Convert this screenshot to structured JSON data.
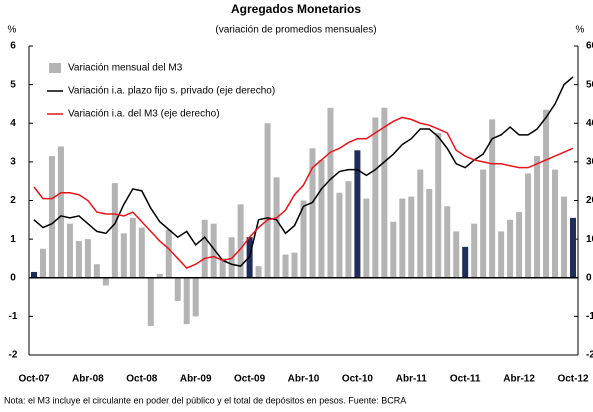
{
  "chart_data": {
    "type": "bar_line",
    "title": "Agregados Monetarios",
    "subtitle": "(variación de promedios mensuales)",
    "y_label": "%",
    "y2_label": "%",
    "note": "Nota: el M3 incluye el circulante en poder del público y el total de depósitos en pesos. Fuente: BCRA",
    "categories": [
      "Oct-07",
      null,
      null,
      null,
      null,
      null,
      "Abr-08",
      null,
      null,
      null,
      null,
      null,
      "Oct-08",
      null,
      null,
      null,
      null,
      null,
      "Abr-09",
      null,
      null,
      null,
      null,
      null,
      "Oct-09",
      null,
      null,
      null,
      null,
      null,
      "Abr-10",
      null,
      null,
      null,
      null,
      null,
      "Oct-10",
      null,
      null,
      null,
      null,
      null,
      "Abr-11",
      null,
      null,
      null,
      null,
      null,
      "Oct-11",
      null,
      null,
      null,
      null,
      null,
      "Abr-12",
      null,
      null,
      null,
      null,
      null,
      "Oct-12"
    ],
    "ylim": [
      -2,
      6
    ],
    "yticks": [
      -2,
      -1,
      0,
      1,
      2,
      3,
      4,
      5,
      6
    ],
    "y2lim": [
      -20,
      60
    ],
    "y2ticks": [
      -20,
      -10,
      0,
      10,
      20,
      30,
      40,
      50,
      60
    ],
    "series": [
      {
        "name": "Variación mensual del M3",
        "type": "bar",
        "colors": [
          "#1f2d5a",
          "#b4b4b4",
          "#b4b4b4",
          "#b4b4b4",
          "#b4b4b4",
          "#b4b4b4",
          "#b4b4b4",
          "#b4b4b4",
          "#b4b4b4",
          "#b4b4b4",
          "#b4b4b4",
          "#b4b4b4",
          "#b4b4b4",
          "#b4b4b4",
          "#b4b4b4",
          "#b4b4b4",
          "#b4b4b4",
          "#b4b4b4",
          "#b4b4b4",
          "#b4b4b4",
          "#b4b4b4",
          "#b4b4b4",
          "#b4b4b4",
          "#b4b4b4",
          "#1f2d5a",
          "#b4b4b4",
          "#b4b4b4",
          "#b4b4b4",
          "#b4b4b4",
          "#b4b4b4",
          "#b4b4b4",
          "#b4b4b4",
          "#b4b4b4",
          "#b4b4b4",
          "#b4b4b4",
          "#b4b4b4",
          "#1f2d5a",
          "#b4b4b4",
          "#b4b4b4",
          "#b4b4b4",
          "#b4b4b4",
          "#b4b4b4",
          "#b4b4b4",
          "#b4b4b4",
          "#b4b4b4",
          "#b4b4b4",
          "#b4b4b4",
          "#b4b4b4",
          "#1f2d5a",
          "#b4b4b4",
          "#b4b4b4",
          "#b4b4b4",
          "#b4b4b4",
          "#b4b4b4",
          "#b4b4b4",
          "#b4b4b4",
          "#b4b4b4",
          "#b4b4b4",
          "#b4b4b4",
          "#b4b4b4",
          "#1f2d5a"
        ],
        "color": "#b4b4b4",
        "values": [
          0.15,
          0.75,
          3.15,
          3.4,
          1.4,
          0.95,
          1.0,
          0.35,
          -0.2,
          2.45,
          1.15,
          1.55,
          1.3,
          -1.25,
          0.1,
          1.25,
          -0.6,
          -1.2,
          -1.0,
          1.5,
          1.4,
          0.5,
          1.05,
          1.9,
          1.05,
          0.3,
          4.0,
          2.6,
          0.6,
          0.65,
          2.0,
          3.35,
          3.05,
          4.4,
          2.2,
          2.5,
          3.3,
          2.05,
          4.15,
          4.4,
          1.45,
          2.05,
          2.1,
          2.8,
          2.3,
          3.75,
          1.85,
          1.2,
          0.8,
          1.4,
          2.8,
          4.1,
          1.2,
          1.5,
          1.7,
          2.7,
          3.15,
          4.35,
          2.8,
          2.1,
          1.55
        ]
      },
      {
        "name": "Variación i.a. plazo fijo s. privado (eje derecho)",
        "type": "line",
        "axis": "y2",
        "color": "#000000",
        "values": [
          15,
          13,
          14,
          16,
          15.5,
          16,
          14,
          12,
          11.5,
          14,
          19,
          23,
          22.5,
          18,
          14.5,
          12.5,
          10.5,
          12,
          8.5,
          10.5,
          7.5,
          4.5,
          3.5,
          3,
          5.5,
          15,
          15.5,
          15,
          11.5,
          13.5,
          18.5,
          19.5,
          23,
          25.5,
          27.5,
          28,
          28,
          26.5,
          28,
          30,
          32,
          34.5,
          36,
          38.5,
          38.5,
          36.5,
          33.5,
          29.5,
          28.5,
          30.5,
          32,
          36,
          37,
          39,
          37,
          37,
          38.5,
          41.5,
          45,
          50,
          52
        ]
      },
      {
        "name": "Variación i.a. del M3 (eje derecho)",
        "type": "line",
        "axis": "y2",
        "color": "#e8141c",
        "values": [
          23.5,
          20.5,
          20.5,
          22,
          22,
          21.5,
          20,
          17,
          16.5,
          16.5,
          16,
          17,
          14.5,
          12,
          9.5,
          7.5,
          5,
          2.5,
          3.5,
          5,
          5.5,
          4.5,
          5,
          7.5,
          10.5,
          13,
          15,
          15.5,
          17.5,
          21.5,
          24,
          28.5,
          30.5,
          32.5,
          33.5,
          35,
          36,
          36,
          37.5,
          39,
          40.5,
          41.5,
          41,
          40,
          39.5,
          38.5,
          37.5,
          33,
          31.5,
          30.5,
          30,
          29.5,
          29.5,
          29,
          28.5,
          28.5,
          29.5,
          30.5,
          31.5,
          32.5,
          33.5
        ]
      }
    ]
  }
}
